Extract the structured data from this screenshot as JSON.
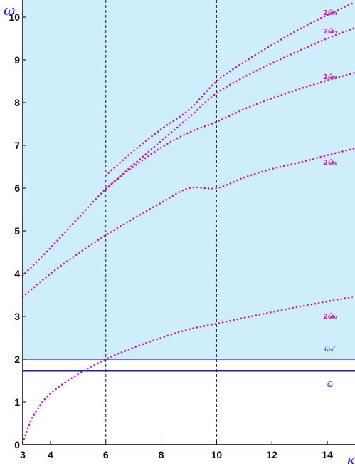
{
  "chart_data": {
    "type": "line",
    "title": "",
    "xlabel": "κ",
    "ylabel": "ω",
    "xlim": [
      3,
      15
    ],
    "ylim": [
      0,
      10.4
    ],
    "x_ticks": [
      "3",
      "4",
      "6",
      "8",
      "10",
      "12",
      "14"
    ],
    "y_ticks": [
      "0",
      "1",
      "2",
      "3",
      "4",
      "5",
      "6",
      "7",
      "8",
      "9",
      "10"
    ],
    "colors": {
      "shade": "#cdeefa",
      "curve": "#c81cb4",
      "hline": "#1a1ad4",
      "vline": "#222222",
      "axis": "#000000"
    },
    "shaded_region": {
      "y_from": 2.0,
      "y_to": 10.4
    },
    "vertical_lines": [
      6,
      10
    ],
    "horizontal_lines": [
      {
        "label": "ω̅₀ᶜ",
        "y": 2.0,
        "weight": "thin"
      },
      {
        "label": "ω̅",
        "y": 1.73,
        "weight": "thick"
      }
    ],
    "series": [
      {
        "name": "2ω̂₀",
        "x": [
          3,
          3.25,
          3.5,
          4,
          5,
          6,
          7,
          8,
          9,
          10,
          11,
          12,
          13,
          14,
          15
        ],
        "y": [
          0.05,
          0.5,
          0.8,
          1.2,
          1.65,
          2.0,
          2.27,
          2.5,
          2.7,
          2.83,
          2.97,
          3.1,
          3.23,
          3.35,
          3.47
        ]
      },
      {
        "name": "2ω̂₁",
        "x": [
          3,
          4,
          5,
          6,
          7,
          8,
          9,
          10,
          11,
          12,
          13,
          14,
          15
        ],
        "y": [
          3.46,
          4.0,
          4.47,
          4.9,
          5.29,
          5.66,
          6.0,
          6.0,
          6.25,
          6.45,
          6.6,
          6.77,
          6.93
        ]
      },
      {
        "name": "2ω̂₂",
        "x": [
          3,
          4,
          5,
          6,
          7,
          8,
          9,
          10,
          11,
          12,
          13,
          14,
          15
        ],
        "y": [
          3.96,
          4.6,
          5.3,
          5.98,
          6.5,
          6.95,
          7.3,
          7.55,
          7.85,
          8.1,
          8.32,
          8.52,
          8.7
        ]
      },
      {
        "name": "2ω̂₃",
        "x": [
          6,
          7,
          8,
          9,
          10,
          11,
          12,
          13,
          14,
          15
        ],
        "y": [
          5.98,
          6.55,
          7.1,
          7.65,
          8.22,
          8.6,
          8.92,
          9.22,
          9.5,
          9.75
        ]
      },
      {
        "name": "2ω̂₄",
        "x": [
          6,
          7,
          8,
          9,
          10,
          11,
          12,
          13,
          14,
          15
        ],
        "y": [
          6.3,
          6.87,
          7.38,
          7.83,
          8.5,
          8.95,
          9.35,
          9.72,
          10.05,
          10.35
        ]
      }
    ],
    "curve_labels": [
      {
        "series": "2ω̂₄",
        "x": 14.1,
        "y": 10.05
      },
      {
        "series": "2ω̂₃",
        "x": 14.1,
        "y": 9.62
      },
      {
        "series": "2ω̂₂",
        "x": 14.1,
        "y": 8.55
      },
      {
        "series": "2ω̂₁",
        "x": 14.1,
        "y": 6.55
      },
      {
        "series": "2ω̂₀",
        "x": 14.1,
        "y": 2.95
      }
    ],
    "hline_labels": [
      {
        "line": "ω̅₀ᶜ",
        "x": 14.1,
        "y": 2.18
      },
      {
        "line": "ω̅",
        "x": 14.1,
        "y": 1.35
      }
    ],
    "grid": false,
    "legend": "none"
  }
}
